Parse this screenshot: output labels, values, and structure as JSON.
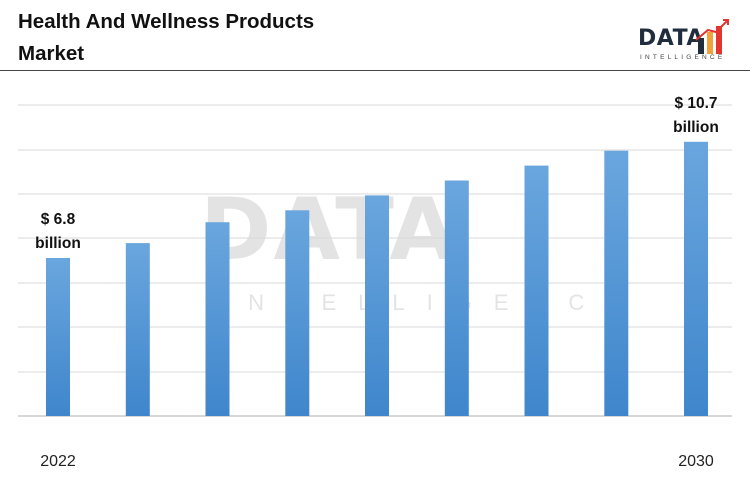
{
  "header": {
    "title_line1": "Health And Wellness Products",
    "title_line2": "Market"
  },
  "logo": {
    "word": "DATA",
    "sub": "INTELLIGENCE",
    "icon": "bar-growth-icon"
  },
  "colors": {
    "bar_top": "#6aa6de",
    "bar_bottom": "#3f86cc",
    "grid": "#d9d9d9",
    "axis": "#bfbfbf"
  },
  "chart_data": {
    "type": "bar",
    "categories": [
      "2022",
      "",
      "",
      "",
      "",
      "",
      "",
      "",
      "2030"
    ],
    "values": [
      6.8,
      7.3,
      8.0,
      8.4,
      8.9,
      9.4,
      9.9,
      10.4,
      10.7
    ],
    "ylim": [
      1.5,
      12.0
    ],
    "grid": true,
    "annotations": [
      {
        "index": 0,
        "line1": "$ 6.8",
        "line2": "billion"
      },
      {
        "index": 8,
        "line1": "$ 10.7",
        "line2": "billion"
      }
    ]
  }
}
